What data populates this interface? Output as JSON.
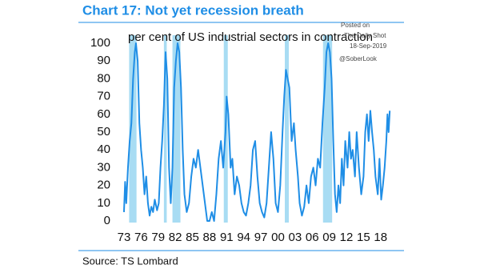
{
  "chart_data": {
    "type": "line",
    "title": "Chart 17: Not yet recession breath",
    "subtitle": "per cent of US industrial sectors in contraction",
    "source": "Source: TS Lombard",
    "watermark": [
      "Posted on",
      "The Daily Shot",
      "18-Sep-2019",
      "@SoberLook"
    ],
    "recessions": [
      [
        1973.9,
        1975.2
      ],
      [
        1980.0,
        1980.5
      ],
      [
        1981.5,
        1982.9
      ],
      [
        1990.5,
        1991.2
      ],
      [
        2001.2,
        2001.9
      ],
      [
        2007.9,
        2009.5
      ]
    ],
    "recession_color": "#a8dcf3",
    "x": [
      1973.0,
      1973.2,
      1973.4,
      1973.7,
      1974.0,
      1974.3,
      1974.6,
      1974.9,
      1975.1,
      1975.4,
      1975.7,
      1976.0,
      1976.3,
      1976.6,
      1976.9,
      1977.2,
      1977.5,
      1977.8,
      1978.1,
      1978.4,
      1978.8,
      1979.1,
      1979.4,
      1979.7,
      1980.0,
      1980.3,
      1980.6,
      1980.9,
      1981.2,
      1981.5,
      1981.8,
      1982.1,
      1982.4,
      1982.7,
      1983.0,
      1983.3,
      1983.6,
      1984.0,
      1984.4,
      1984.8,
      1985.2,
      1985.6,
      1986.0,
      1986.4,
      1986.8,
      1987.2,
      1987.6,
      1988.0,
      1988.4,
      1988.8,
      1989.2,
      1989.6,
      1990.0,
      1990.4,
      1990.8,
      1991.0,
      1991.3,
      1991.7,
      1992.0,
      1992.4,
      1992.8,
      1993.2,
      1993.6,
      1994.0,
      1994.4,
      1994.8,
      1995.2,
      1995.6,
      1996.0,
      1996.4,
      1996.8,
      1997.2,
      1997.6,
      1998.0,
      1998.4,
      1998.8,
      1999.2,
      1999.6,
      2000.0,
      2000.4,
      2000.8,
      2001.1,
      2001.4,
      2001.7,
      2002.0,
      2002.4,
      2002.8,
      2003.1,
      2003.5,
      2003.8,
      2004.2,
      2004.6,
      2005.0,
      2005.4,
      2005.8,
      2006.2,
      2006.6,
      2007.0,
      2007.4,
      2007.8,
      2008.2,
      2008.5,
      2008.8,
      2009.1,
      2009.4,
      2009.7,
      2010.0,
      2010.3,
      2010.6,
      2010.9,
      2011.2,
      2011.5,
      2011.8,
      2012.2,
      2012.5,
      2012.8,
      2013.1,
      2013.5,
      2013.8,
      2014.2,
      2014.6,
      2015.0,
      2015.3,
      2015.6,
      2015.9,
      2016.2,
      2016.5,
      2016.8,
      2017.1,
      2017.5,
      2017.8,
      2018.1,
      2018.4,
      2018.7,
      2019.0,
      2019.2,
      2019.4,
      2019.6
    ],
    "series": [
      {
        "color": "#1f8ee6",
        "values": [
          5,
          22,
          10,
          30,
          45,
          55,
          80,
          95,
          100,
          90,
          55,
          40,
          30,
          15,
          25,
          10,
          3,
          8,
          5,
          12,
          6,
          10,
          30,
          45,
          65,
          95,
          80,
          30,
          10,
          30,
          75,
          90,
          100,
          95,
          75,
          40,
          15,
          5,
          10,
          25,
          35,
          30,
          40,
          30,
          20,
          10,
          0,
          0,
          5,
          0,
          15,
          35,
          45,
          30,
          50,
          70,
          60,
          30,
          35,
          15,
          25,
          20,
          10,
          5,
          3,
          10,
          20,
          40,
          45,
          25,
          10,
          5,
          2,
          10,
          30,
          50,
          35,
          10,
          5,
          20,
          50,
          70,
          85,
          80,
          75,
          45,
          55,
          40,
          25,
          10,
          3,
          8,
          20,
          10,
          25,
          30,
          20,
          35,
          30,
          55,
          75,
          95,
          100,
          95,
          80,
          45,
          15,
          5,
          20,
          10,
          35,
          20,
          45,
          30,
          50,
          35,
          40,
          25,
          50,
          30,
          15,
          25,
          50,
          60,
          45,
          62,
          50,
          40,
          25,
          15,
          35,
          12,
          20,
          30,
          45,
          60,
          50,
          62
        ]
      }
    ],
    "xlim": [
      1971.7,
      2020.5
    ],
    "ylim": [
      0,
      100
    ],
    "yticks": [
      0,
      10,
      20,
      30,
      40,
      50,
      60,
      70,
      80,
      90,
      100
    ],
    "xticks": [
      {
        "value": 1973,
        "label": "73"
      },
      {
        "value": 1976,
        "label": "76"
      },
      {
        "value": 1979,
        "label": "79"
      },
      {
        "value": 1982,
        "label": "82"
      },
      {
        "value": 1985,
        "label": "85"
      },
      {
        "value": 1988,
        "label": "88"
      },
      {
        "value": 1991,
        "label": "91"
      },
      {
        "value": 1994,
        "label": "94"
      },
      {
        "value": 1997,
        "label": "97"
      },
      {
        "value": 2000,
        "label": "00"
      },
      {
        "value": 2003,
        "label": "03"
      },
      {
        "value": 2006,
        "label": "06"
      },
      {
        "value": 2009,
        "label": "09"
      },
      {
        "value": 2012,
        "label": "12"
      },
      {
        "value": 2015,
        "label": "15"
      },
      {
        "value": 2018,
        "label": "18"
      }
    ]
  }
}
